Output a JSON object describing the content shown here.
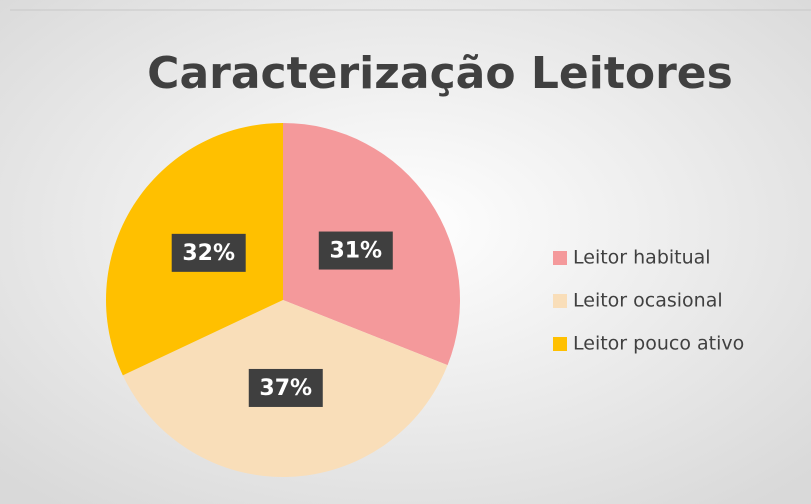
{
  "chart_data": {
    "type": "pie",
    "title": "Caracterização Leitores",
    "categories": [
      "Leitor habitual",
      "Leitor ocasional",
      "Leitor pouco ativo"
    ],
    "values": [
      31,
      37,
      32
    ],
    "value_labels": [
      "31%",
      "37%",
      "32%"
    ],
    "colors": [
      "#F4999B",
      "#F9DEB9",
      "#FFC000"
    ],
    "legend": "right"
  }
}
